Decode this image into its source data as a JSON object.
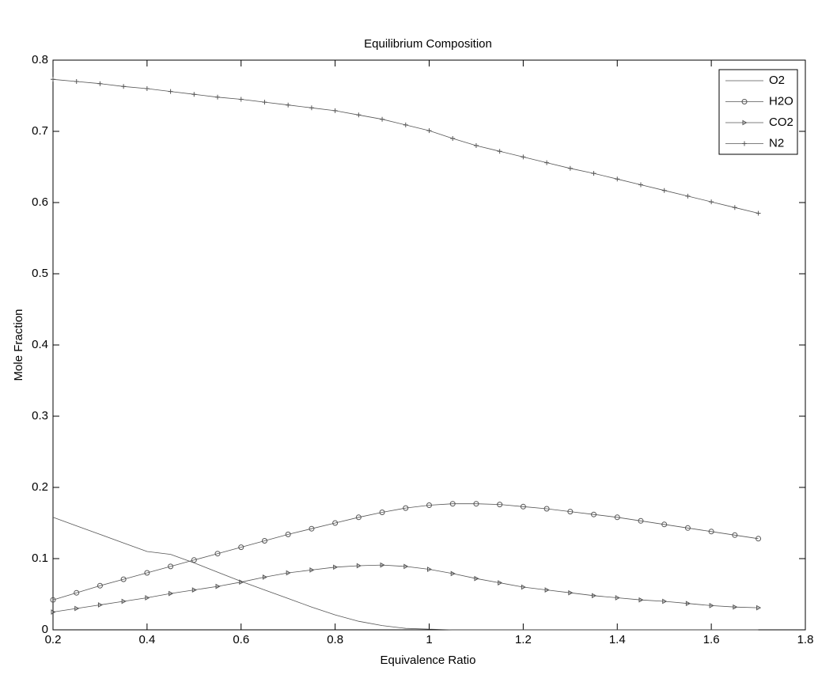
{
  "chart_data": {
    "type": "line",
    "title": "Equilibrium Composition",
    "xlabel": "Equivalence Ratio",
    "ylabel": "Mole Fraction",
    "x": [
      0.2,
      0.25,
      0.3,
      0.35,
      0.4,
      0.45,
      0.5,
      0.55,
      0.6,
      0.65,
      0.7,
      0.75,
      0.8,
      0.85,
      0.9,
      0.95,
      1.0,
      1.05,
      1.1,
      1.15,
      1.2,
      1.25,
      1.3,
      1.35,
      1.4,
      1.45,
      1.5,
      1.55,
      1.6,
      1.65,
      1.7
    ],
    "series": [
      {
        "name": "O2",
        "color": "#555555",
        "marker": "none",
        "values": [
          0.158,
          0.146,
          0.134,
          0.122,
          0.11,
          0.106,
          0.094,
          0.081,
          0.068,
          0.056,
          0.044,
          0.032,
          0.021,
          0.012,
          0.006,
          0.002,
          0.001,
          0,
          0,
          0,
          0,
          0,
          0,
          0,
          0,
          0,
          0,
          0,
          0,
          0,
          0
        ]
      },
      {
        "name": "H2O",
        "color": "#555555",
        "marker": "circle",
        "values": [
          0.042,
          0.052,
          0.062,
          0.071,
          0.08,
          0.089,
          0.098,
          0.107,
          0.116,
          0.125,
          0.134,
          0.142,
          0.15,
          0.158,
          0.165,
          0.171,
          0.175,
          0.177,
          0.177,
          0.176,
          0.173,
          0.17,
          0.166,
          0.162,
          0.158,
          0.153,
          0.148,
          0.143,
          0.138,
          0.133,
          0.128
        ]
      },
      {
        "name": "CO2",
        "color": "#555555",
        "marker": "triangle",
        "values": [
          0.025,
          0.03,
          0.035,
          0.04,
          0.045,
          0.051,
          0.056,
          0.061,
          0.067,
          0.074,
          0.08,
          0.084,
          0.088,
          0.09,
          0.091,
          0.089,
          0.085,
          0.079,
          0.072,
          0.066,
          0.06,
          0.056,
          0.052,
          0.048,
          0.045,
          0.042,
          0.04,
          0.037,
          0.034,
          0.032,
          0.031
        ]
      },
      {
        "name": "N2",
        "color": "#555555",
        "marker": "plus",
        "values": [
          0.773,
          0.77,
          0.767,
          0.763,
          0.76,
          0.756,
          0.752,
          0.748,
          0.745,
          0.741,
          0.737,
          0.733,
          0.729,
          0.723,
          0.717,
          0.709,
          0.701,
          0.69,
          0.68,
          0.672,
          0.664,
          0.656,
          0.648,
          0.641,
          0.633,
          0.625,
          0.617,
          0.609,
          0.601,
          0.593,
          0.585
        ]
      }
    ],
    "xlim": [
      0.2,
      1.8
    ],
    "xticks": [
      0.2,
      0.4,
      0.6,
      0.8,
      1,
      1.2,
      1.4,
      1.6,
      1.8
    ],
    "ylim": [
      0,
      0.8
    ],
    "yticks": [
      0,
      0.1,
      0.2,
      0.3,
      0.4,
      0.5,
      0.6,
      0.7,
      0.8
    ],
    "grid": false,
    "legend": "northeast"
  }
}
